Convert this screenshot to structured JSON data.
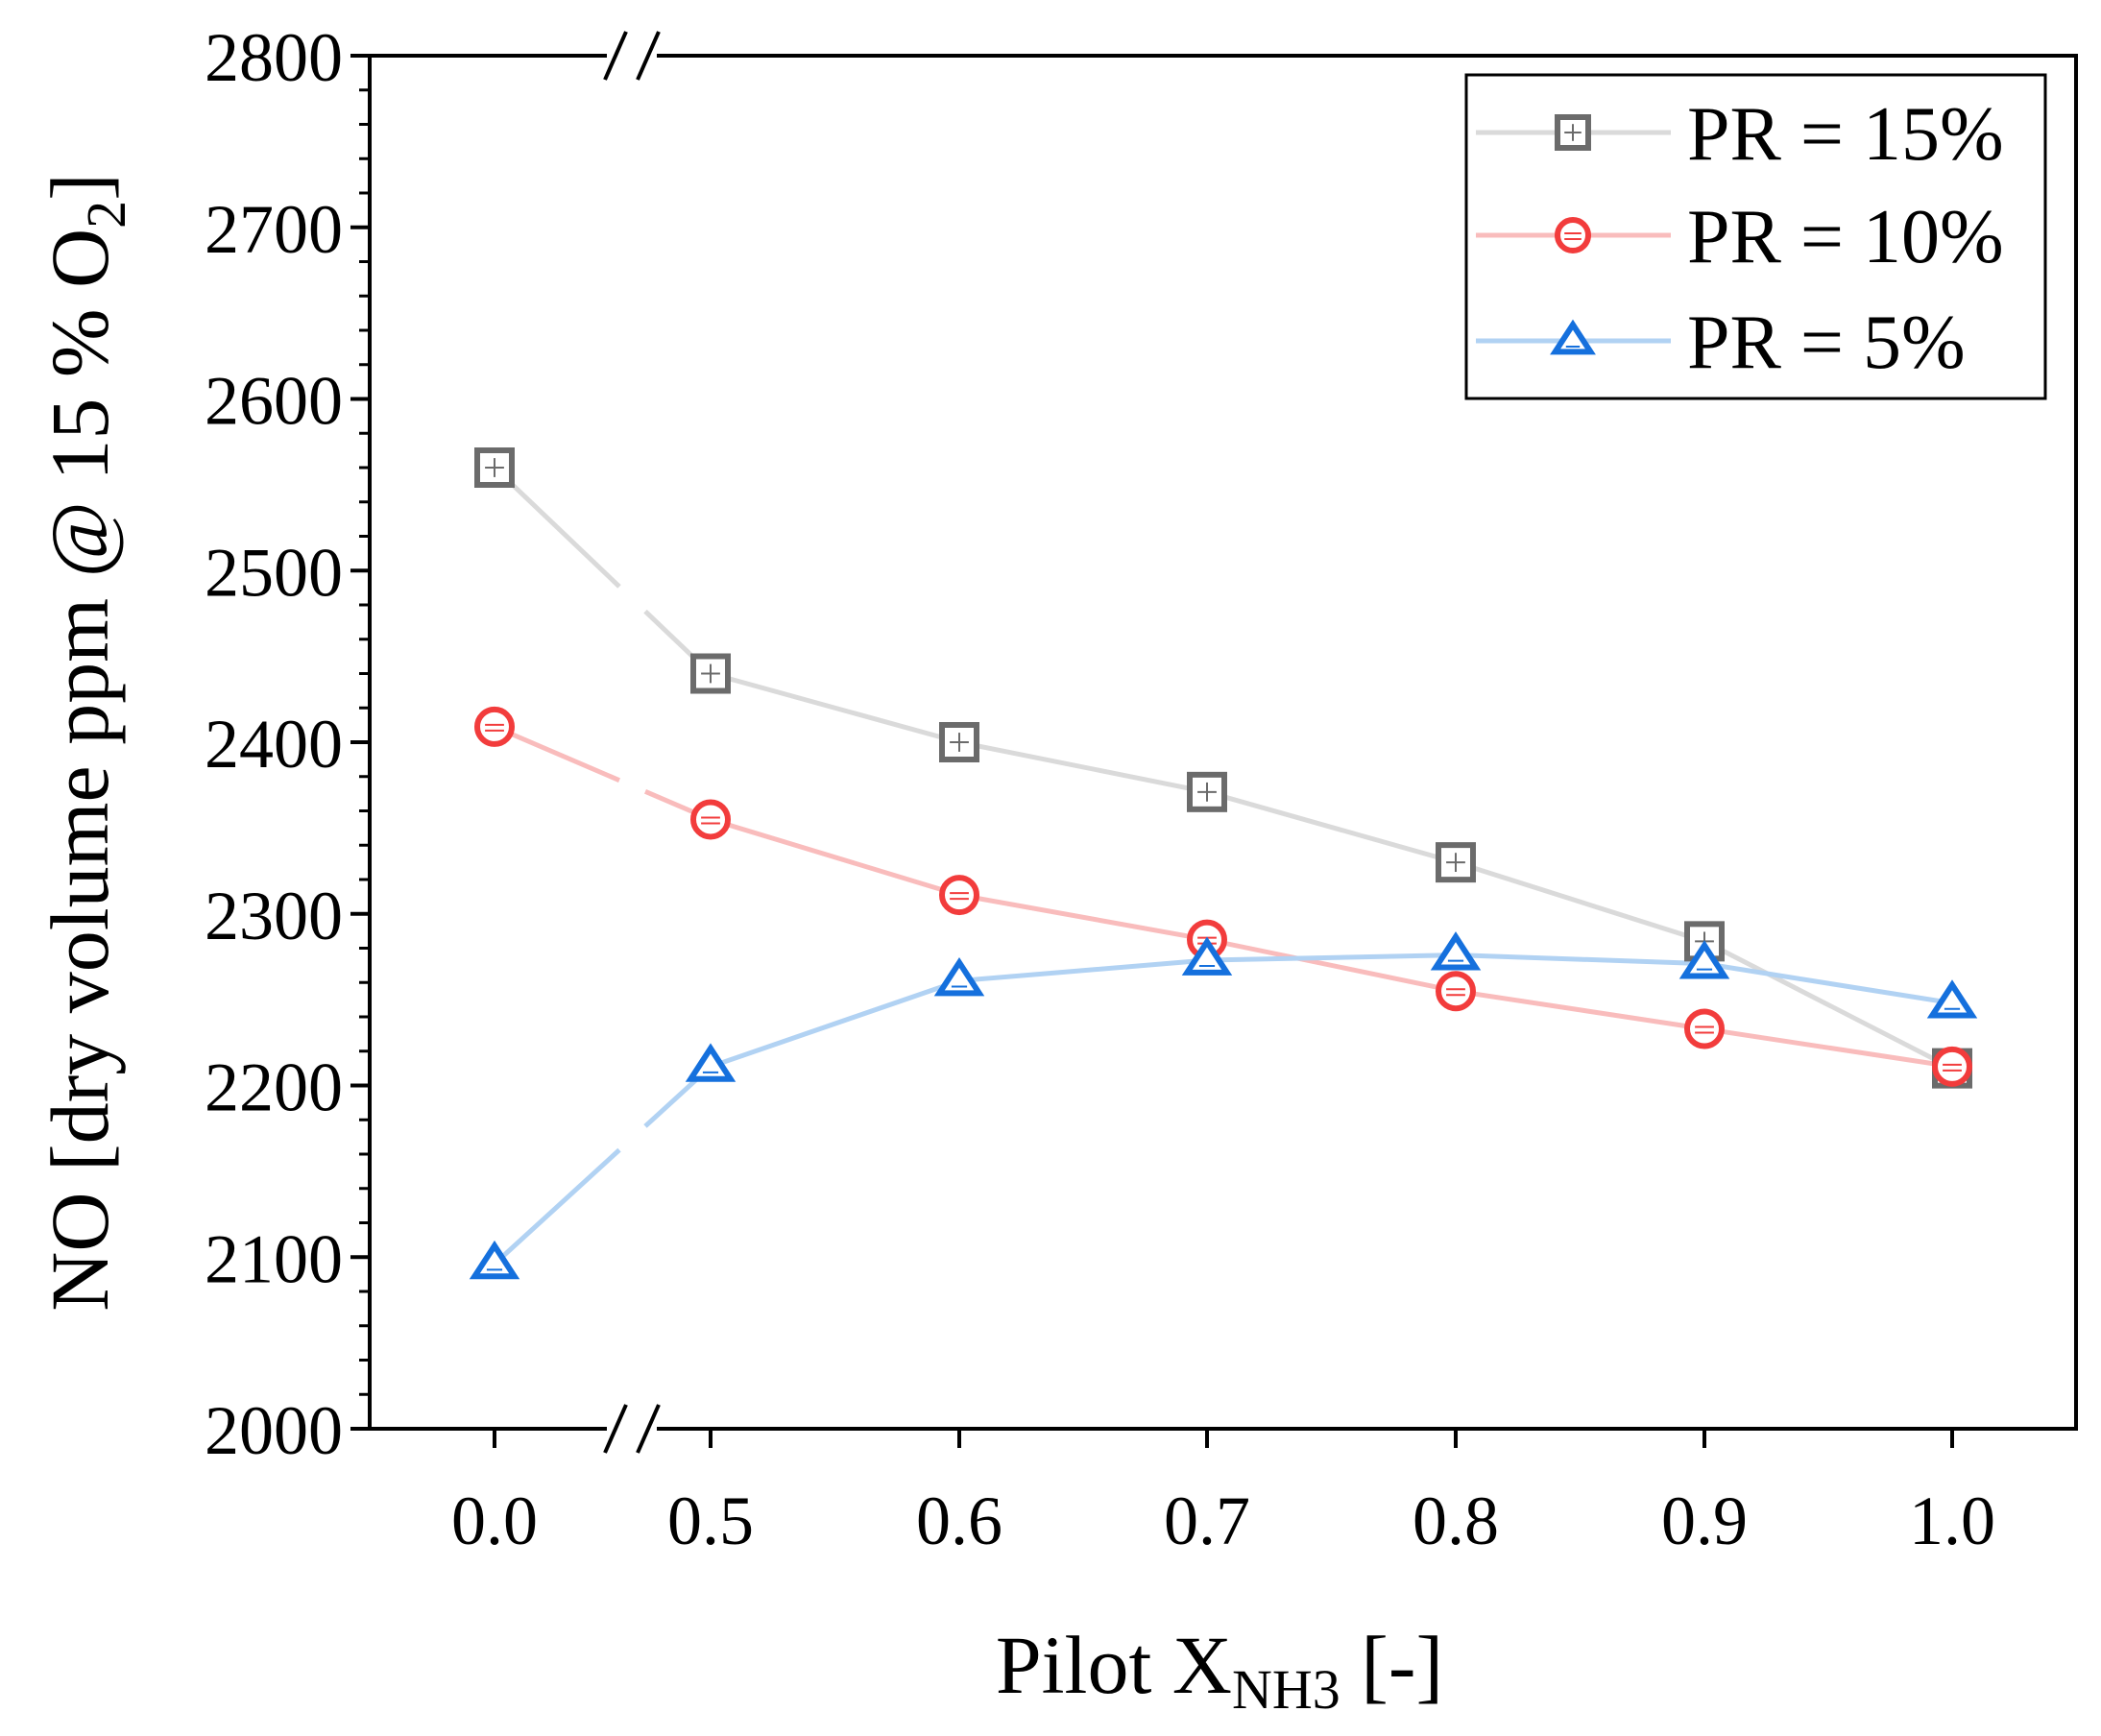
{
  "chart_data": {
    "type": "line",
    "x_categories": [
      "0.0",
      "0.5",
      "0.6",
      "0.7",
      "0.8",
      "0.9",
      "1.0"
    ],
    "x": [
      0.0,
      0.5,
      0.6,
      0.7,
      0.8,
      0.9,
      1.0
    ],
    "x_axis_break": "between 0.0 and 0.5",
    "y_axis_break": "at top and bottom between 0.0 and 0.5",
    "ylim": [
      2000,
      2800
    ],
    "y_ticks": [
      2000,
      2100,
      2200,
      2300,
      2400,
      2500,
      2600,
      2700,
      2800
    ],
    "y_tick_labels": [
      "2000",
      "2100",
      "2200",
      "2300",
      "2400",
      "2500",
      "2600",
      "2700",
      "2800"
    ],
    "y_minor_step": 20,
    "title": "",
    "xlabel": {
      "main": "Pilot X",
      "sub": "NH3",
      "suffix": " [-]"
    },
    "ylabel": {
      "main": "NO [dry volume ppm @ 15 % O",
      "sub": "2",
      "suffix": "]"
    },
    "legend_position": "top-right",
    "series": [
      {
        "name": "PR = 15%",
        "marker": "square",
        "marker_color": "#6b6b6b",
        "line_color": "#dadada",
        "values": [
          2560,
          2440,
          2400,
          2371,
          2330,
          2284,
          2210
        ]
      },
      {
        "name": "PR = 10%",
        "marker": "circle",
        "marker_color": "#f23c3c",
        "line_color": "#f9bcbc",
        "values": [
          2409,
          2355,
          2311,
          2285,
          2255,
          2233,
          2211
        ]
      },
      {
        "name": "PR = 5%",
        "marker": "triangle",
        "marker_color": "#1570dd",
        "line_color": "#b1d2f3",
        "values": [
          2096,
          2211,
          2261,
          2273,
          2276,
          2271,
          2248
        ]
      }
    ]
  }
}
